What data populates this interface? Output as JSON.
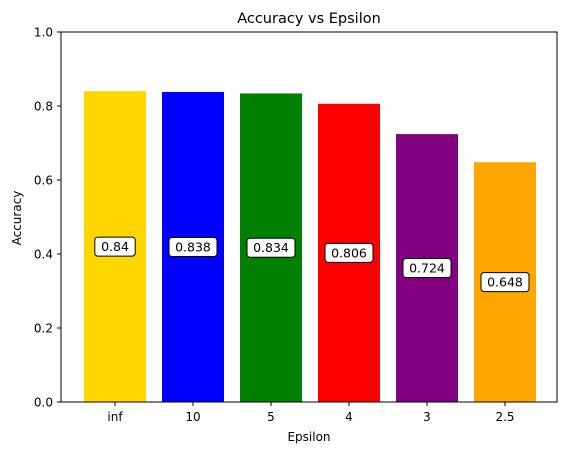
{
  "chart_data": {
    "type": "bar",
    "title": "Accuracy vs Epsilon",
    "xlabel": "Epsilon",
    "ylabel": "Accuracy",
    "categories": [
      "inf",
      "10",
      "5",
      "4",
      "3",
      "2.5"
    ],
    "values": [
      0.84,
      0.838,
      0.834,
      0.806,
      0.724,
      0.648
    ],
    "value_labels": [
      "0.84",
      "0.838",
      "0.834",
      "0.806",
      "0.724",
      "0.648"
    ],
    "colors": [
      "#FFD700",
      "#0000FF",
      "#008000",
      "#FF0000",
      "#800080",
      "#FFA500"
    ],
    "ylim": [
      0,
      1.0
    ],
    "yticks": [
      "0.0",
      "0.2",
      "0.4",
      "0.6",
      "0.8",
      "1.0"
    ],
    "grid": false,
    "legend": "none"
  }
}
